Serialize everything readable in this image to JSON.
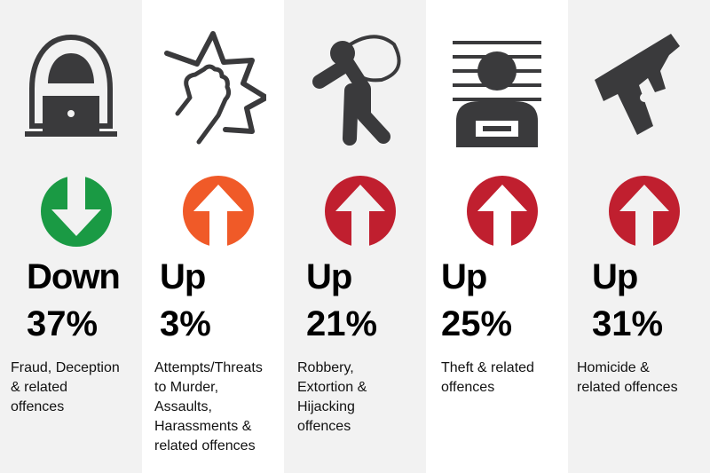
{
  "colors": {
    "down": "#1a9a44",
    "up_orange": "#f05a28",
    "up_red": "#c01f2f",
    "icon": "#3a3a3c"
  },
  "items": [
    {
      "icon": "hooded-hacker-laptop-icon",
      "arrow": "arrow-down-icon",
      "direction": "Down",
      "percent": "37%",
      "label": [
        "Fraud, Deception",
        "& related",
        "offences"
      ]
    },
    {
      "icon": "fist-punch-icon",
      "arrow": "arrow-up-icon",
      "direction": "Up",
      "percent": "3%",
      "label": [
        "Attempts/Threats",
        "to Murder,",
        "Assaults,",
        "Harassments &",
        "related offences"
      ]
    },
    {
      "icon": "thief-with-sack-icon",
      "arrow": "arrow-up-icon",
      "direction": "Up",
      "percent": "21%",
      "label": [
        "Robbery,",
        "Extortion &",
        "Hijacking",
        "offences"
      ]
    },
    {
      "icon": "mugshot-icon",
      "arrow": "arrow-up-icon",
      "direction": "Up",
      "percent": "25%",
      "label": [
        "Theft & related",
        "offences"
      ]
    },
    {
      "icon": "pistol-icon",
      "arrow": "arrow-up-icon",
      "direction": "Up",
      "percent": "31%",
      "label": [
        "Homicide &",
        "related offences"
      ]
    }
  ]
}
